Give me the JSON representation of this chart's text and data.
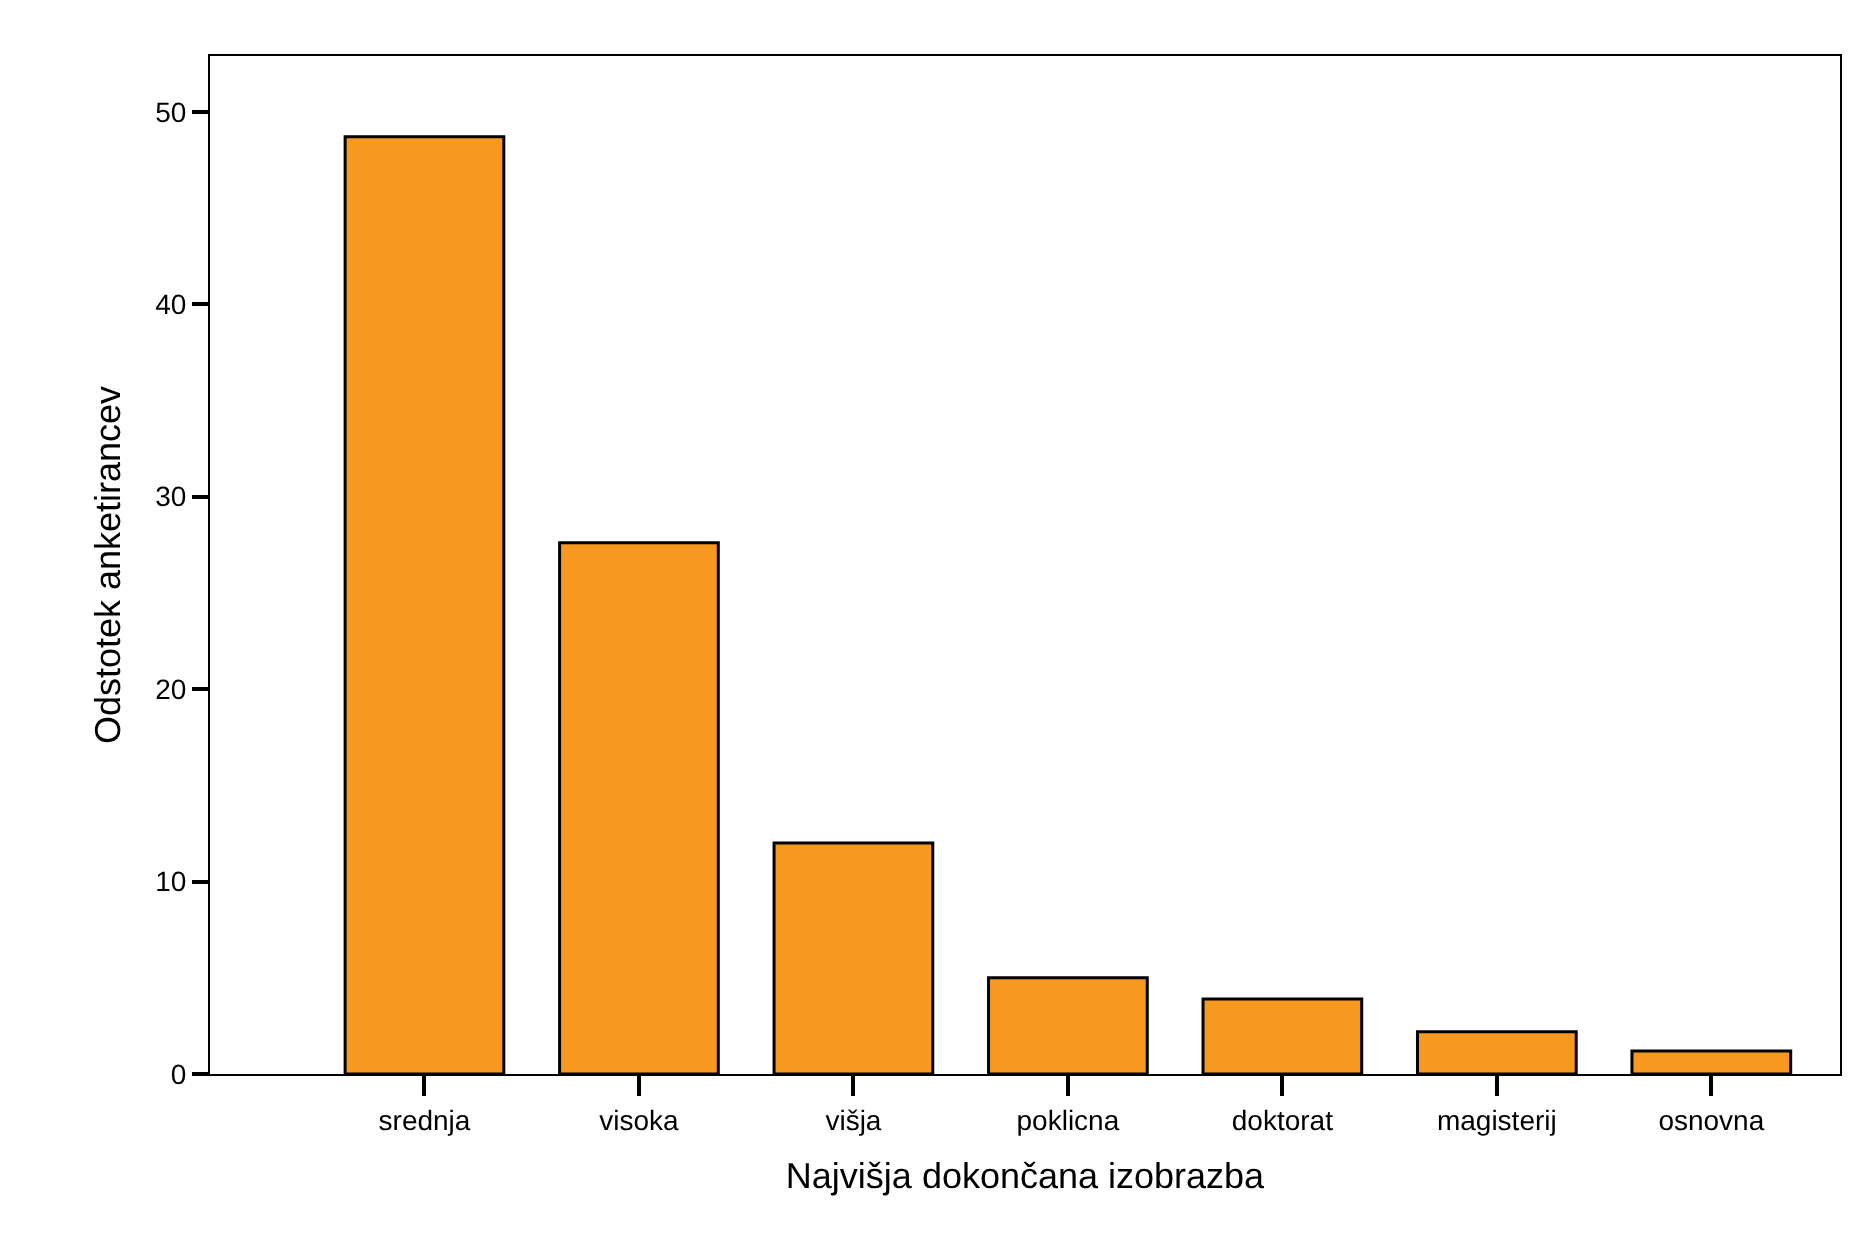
{
  "chart_data": {
    "type": "bar",
    "xlabel": "Najvišja dokončana izobrazba",
    "ylabel": "Odstotek anketirancev",
    "categories": [
      "srednja",
      "visoka",
      "višja",
      "poklicna",
      "doktorat",
      "magisterij",
      "osnovna"
    ],
    "values": [
      48.7,
      27.6,
      12.0,
      5.0,
      3.9,
      2.2,
      1.2
    ],
    "color": "#f7991f",
    "ylim": [
      0,
      52.9
    ],
    "yticks": [
      0,
      10,
      20,
      30,
      40,
      50
    ]
  }
}
